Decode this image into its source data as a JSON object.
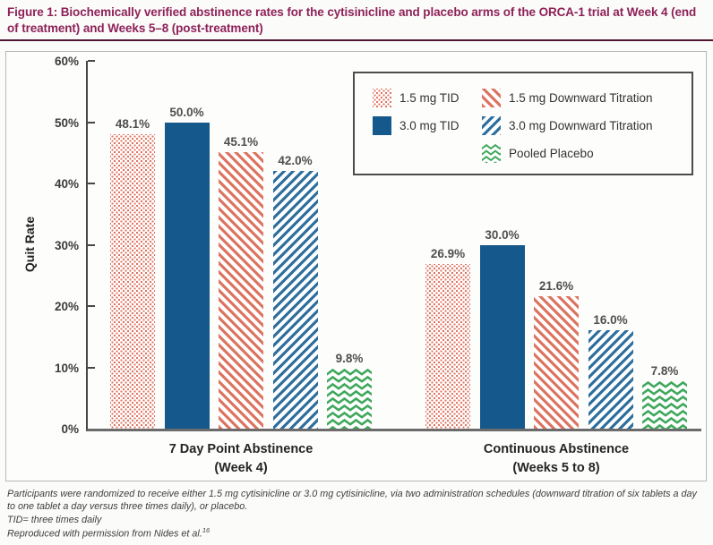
{
  "figure": {
    "title": "Figure 1: Biochemically verified abstinence rates for the cytisinicline and placebo arms of the ORCA-1 trial at Week 4 (end of treatment) and Weeks 5–8 (post-treatment)"
  },
  "palette": {
    "title_text": "#8e2158",
    "title_rule": "#511431",
    "axis_line": "#474747",
    "baseline": "#6b6b6b",
    "value_label_text": "#4f4f4f",
    "red": "#dc7460",
    "solid_blue": "#15588c",
    "striped_blue": "#2e6f9e",
    "green": "#3fa85c"
  },
  "chart_data": {
    "type": "bar",
    "title": "Figure 1: Biochemically verified abstinence rates for the cytisinicline and placebo arms of the ORCA-1 trial at Week 4 (end of treatment) and Weeks 5–8 (post-treatment)",
    "xlabel": "",
    "ylabel": "Quit Rate",
    "ylim": [
      0,
      60
    ],
    "yticks": [
      0,
      10,
      20,
      30,
      40,
      50,
      60
    ],
    "ytick_suffix": "%",
    "grid": false,
    "legend_position": "top-right",
    "categories": [
      "7 Day Point Abstinence (Week 4)",
      "Continuous Abstinence (Weeks 5 to 8)"
    ],
    "category_label_lines": [
      [
        "7 Day Point Abstinence",
        "(Week 4)"
      ],
      [
        "Continuous Abstinence",
        "(Weeks 5 to 8)"
      ]
    ],
    "series": [
      {
        "name": "1.5 mg TID",
        "values": [
          48.1,
          26.9
        ],
        "pattern": "dots",
        "color": "#dc7460"
      },
      {
        "name": "3.0 mg TID",
        "values": [
          50.0,
          30.0
        ],
        "pattern": "solid",
        "color": "#15588c"
      },
      {
        "name": "1.5 mg Downward Titration",
        "values": [
          45.1,
          21.6
        ],
        "pattern": "diag-down",
        "color": "#dc7460"
      },
      {
        "name": "3.0 mg Downward Titration",
        "values": [
          42.0,
          16.0
        ],
        "pattern": "diag-up",
        "color": "#2e6f9e"
      },
      {
        "name": "Pooled Placebo",
        "values": [
          9.8,
          7.8
        ],
        "pattern": "chevron",
        "color": "#3fa85c"
      }
    ],
    "value_labels": [
      [
        "48.1%",
        "50.0%",
        "45.1%",
        "42.0%",
        "9.8%"
      ],
      [
        "26.9%",
        "30.0%",
        "21.6%",
        "16.0%",
        "7.8%"
      ]
    ],
    "legend_columns": [
      [
        0,
        1
      ],
      [
        2,
        3,
        4
      ]
    ]
  },
  "footnotes": {
    "randomization": "Participants were randomized to receive either 1.5 mg cytisinicline or 3.0 mg cytisinicline, via two administration schedules (downward titration of six tablets a day to one tablet a day versus three times daily), or placebo.",
    "tid_definition": "TID= three times daily",
    "source": "Reproduced with permission from Nides et al.",
    "source_ref": "16"
  }
}
